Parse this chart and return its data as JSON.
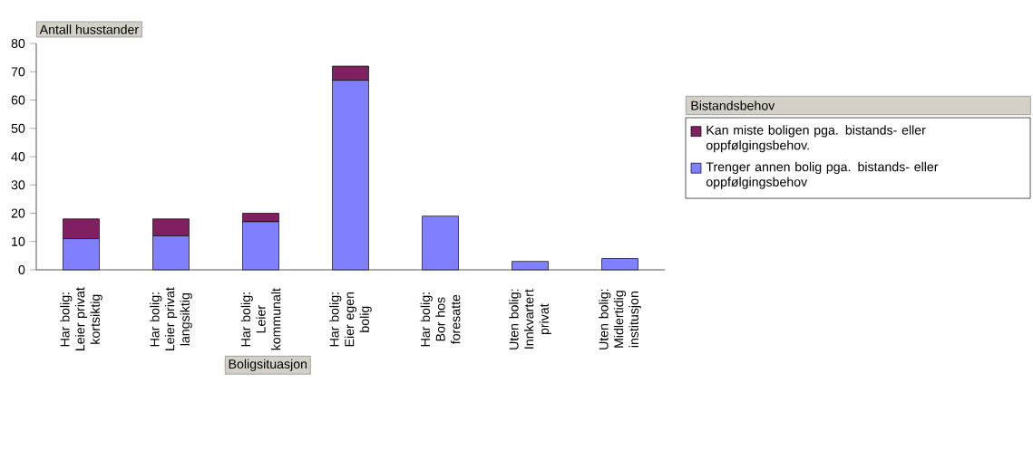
{
  "chart_data": {
    "type": "bar",
    "stacked": true,
    "ylabel": "Antall husstander",
    "xlabel": "Boligsituasjon",
    "legend_title": "Bistandsbehov",
    "categories": [
      "Har bolig: Leier privat kortsiktig",
      "Har bolig: Leier privat langsiktig",
      "Har bolig: Leier kommunalt",
      "Har bolig: Eier egen bolig",
      "Har bolig: Bor hos foresatte",
      "Uten bolig: Innkvartert privat",
      "Uten bolig: Midlertidig institusjon"
    ],
    "series": [
      {
        "name": "Trenger annen bolig pga. bistands- eller oppfølgingsbehov",
        "color": "#8080ff",
        "values": [
          11,
          12,
          17,
          67,
          19,
          3,
          4
        ]
      },
      {
        "name": "Kan miste boligen pga. bistands- eller oppfølgingsbehov.",
        "color": "#802060",
        "values": [
          7,
          6,
          3,
          5,
          null,
          null,
          null
        ]
      }
    ],
    "ylim": [
      0,
      80
    ],
    "yticks": [
      0,
      10,
      20,
      30,
      40,
      50,
      60,
      70,
      80
    ],
    "grid": false,
    "legend": "right"
  }
}
